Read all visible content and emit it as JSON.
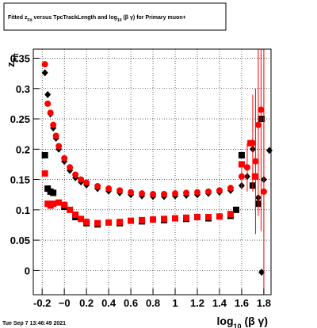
{
  "chart_data": {
    "type": "scatter",
    "title": [
      "Fitted z",
      "Fit",
      " versus TpcTrackLength and log",
      "10",
      " (β  γ) for Primary muon+"
    ],
    "x_label": [
      "log",
      "10",
      " (β γ)"
    ],
    "y_label": [
      "z",
      "Fit"
    ],
    "footer": "Tue Sep  7 13:46:49 2021",
    "xlim": [
      -0.28,
      1.865
    ],
    "ylim": [
      -0.04,
      0.365
    ],
    "xticks": [
      -0.2,
      {
        "value": 0,
        "label": "−0"
      },
      0.2,
      0.4,
      0.6,
      0.8,
      1,
      1.2,
      1.4,
      1.6,
      1.8
    ],
    "yticks": [
      0,
      0.05,
      0.1,
      0.15,
      0.2,
      0.25,
      0.3,
      0.35
    ],
    "grid": true,
    "series": [
      {
        "marker": "diamond",
        "color": "#000000",
        "x": [
          -0.175,
          -0.15,
          -0.125,
          -0.1,
          -0.075,
          -0.05,
          0,
          0.05,
          0.1,
          0.15,
          0.2,
          0.3,
          0.4,
          0.5,
          0.6,
          0.7,
          0.8,
          0.9,
          1.0,
          1.1,
          1.2,
          1.3,
          1.4,
          1.5,
          1.6,
          1.65,
          1.7,
          1.75,
          1.8,
          1.85,
          1.78
        ],
        "values": [
          0.326,
          0.29,
          0.258,
          0.235,
          0.218,
          0.2,
          0.18,
          0.165,
          0.153,
          0.146,
          0.141,
          0.135,
          0.131,
          0.128,
          0.125,
          0.123,
          0.122,
          0.122,
          0.123,
          0.124,
          0.125,
          0.127,
          0.129,
          0.132,
          0.14,
          0.155,
          0.2,
          0.12,
          0.15,
          0.198,
          -0.003
        ]
      },
      {
        "marker": "square",
        "color": "#000000",
        "x": [
          -0.175,
          -0.15,
          -0.125,
          -0.1,
          0,
          0.1,
          0.2,
          0.3,
          0.5,
          0.7,
          0.9,
          1.1,
          1.3,
          1.5,
          1.55,
          1.6,
          1.7,
          1.75,
          1.78
        ],
        "values": [
          0.19,
          0.135,
          0.13,
          0.128,
          0.105,
          0.088,
          0.078,
          0.076,
          0.078,
          0.081,
          0.083,
          0.085,
          0.086,
          0.09,
          0.1,
          0.19,
          0.14,
          0.11,
          0.25
        ]
      },
      {
        "marker": "square",
        "color": "#ff0000",
        "x": [
          -0.175,
          -0.15,
          -0.125,
          -0.1,
          -0.05,
          0,
          0.05,
          0.1,
          0.15,
          0.2,
          0.3,
          0.4,
          0.5,
          0.6,
          0.7,
          0.8,
          0.9,
          1.0,
          1.1,
          1.2,
          1.3,
          1.4,
          1.5,
          1.6,
          1.68,
          1.72
        ],
        "values": [
          0.16,
          0.11,
          0.107,
          0.11,
          0.112,
          0.108,
          0.1,
          0.092,
          0.085,
          0.08,
          0.078,
          0.079,
          0.08,
          0.082,
          0.083,
          0.084,
          0.085,
          0.086,
          0.087,
          0.088,
          0.088,
          0.089,
          0.093,
          0.175,
          0.21,
          0.155
        ]
      },
      {
        "marker": "circle",
        "color": "#ff0000",
        "x": [
          -0.175,
          -0.15,
          -0.125,
          -0.1,
          -0.075,
          -0.05,
          0,
          0.05,
          0.1,
          0.15,
          0.2,
          0.3,
          0.4,
          0.5,
          0.6,
          0.7,
          0.8,
          0.9,
          1.0,
          1.1,
          1.2,
          1.3,
          1.4,
          1.5,
          1.6,
          1.65,
          1.7,
          1.725,
          1.75,
          1.775,
          1.8
        ],
        "values": [
          0.34,
          0.275,
          0.26,
          0.24,
          0.222,
          0.205,
          0.185,
          0.17,
          0.158,
          0.15,
          0.145,
          0.139,
          0.135,
          0.132,
          0.129,
          0.127,
          0.126,
          0.126,
          0.127,
          0.128,
          0.129,
          0.13,
          0.132,
          0.136,
          0.155,
          0.17,
          0.21,
          0.18,
          0.24,
          0.265,
          0.13
        ],
        "errors": [
          0,
          0,
          0,
          0,
          0,
          0,
          0,
          0,
          0,
          0,
          0,
          0,
          0,
          0,
          0,
          0,
          0,
          0,
          0,
          0,
          0,
          0,
          0,
          0.005,
          0.02,
          0.04,
          0.08,
          0.12,
          0.15,
          0.2,
          0.25
        ]
      }
    ]
  }
}
